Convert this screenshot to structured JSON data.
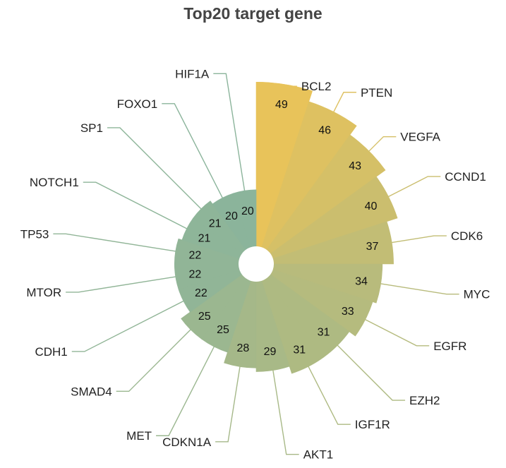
{
  "chart_data": {
    "type": "bar",
    "subtype": "polar-radial-bar",
    "title": "Top20 target gene",
    "categories": [
      "BCL2",
      "PTEN",
      "VEGFA",
      "CCND1",
      "CDK6",
      "MYC",
      "EGFR",
      "EZH2",
      "IGF1R",
      "AKT1",
      "CDKN1A",
      "MET",
      "SMAD4",
      "CDH1",
      "MTOR",
      "TP53",
      "NOTCH1",
      "SP1",
      "FOXO1",
      "HIF1A"
    ],
    "values": [
      49,
      46,
      43,
      40,
      37,
      34,
      33,
      31,
      31,
      29,
      28,
      25,
      25,
      22,
      22,
      22,
      21,
      21,
      20,
      20
    ],
    "color_gradient": {
      "high": "#E8C35A",
      "low": "#8BB49B"
    },
    "legend": "none",
    "grid": false
  }
}
